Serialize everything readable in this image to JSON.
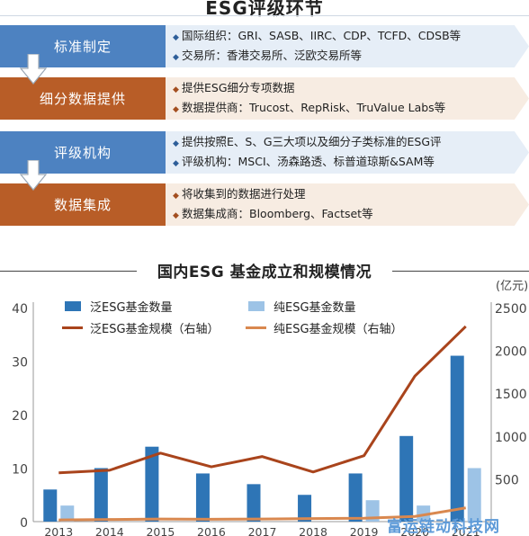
{
  "flow": {
    "title": "ESG评级环节",
    "steps": [
      {
        "label": "标准制定",
        "color": "blue",
        "bullets": [
          "国际组织：GRI、SASB、IIRC、CDP、TCFD、CDSB等",
          "交易所：香港交易所、泛欧交易所等"
        ]
      },
      {
        "label": "细分数据提供",
        "color": "orange",
        "bullets": [
          "提供ESG细分专项数据",
          "数据提供商：Trucost、RepRisk、TruValue Labs等"
        ]
      },
      {
        "label": "评级机构",
        "color": "blue",
        "bullets": [
          "提供按照E、S、G三大项以及细分子类标准的ESG评",
          "评级机构：MSCI、汤森路透、标普道琼斯&SAM等"
        ]
      },
      {
        "label": "数据集成",
        "color": "orange",
        "bullets": [
          "将收集到的数据进行处理",
          "数据集成商：Bloomberg、Factset等"
        ]
      }
    ]
  },
  "chart_data": {
    "type": "bar",
    "title": "国内ESG 基金成立和规模情况",
    "categories": [
      "2013",
      "2014",
      "2015",
      "2016",
      "2017",
      "2018",
      "2019",
      "2020",
      "2021"
    ],
    "series": [
      {
        "name": "泛ESG基金数量",
        "kind": "bar",
        "axis": "left",
        "color": "#2e75b6",
        "values": [
          6,
          10,
          14,
          9,
          7,
          5,
          9,
          16,
          31
        ]
      },
      {
        "name": "纯ESG基金数量",
        "kind": "bar",
        "axis": "left",
        "color": "#9dc3e6",
        "values": [
          3,
          0,
          0,
          0,
          0,
          0,
          4,
          3,
          10
        ]
      },
      {
        "name": "泛ESG基金规模（右轴）",
        "kind": "line",
        "axis": "right",
        "color": "#a9441c",
        "values": [
          570,
          600,
          800,
          640,
          760,
          580,
          770,
          1700,
          2280
        ]
      },
      {
        "name": "纯ESG基金规模（右轴）",
        "kind": "line",
        "axis": "right",
        "color": "#d9884f",
        "values": [
          20,
          25,
          30,
          28,
          30,
          35,
          40,
          60,
          160
        ]
      }
    ],
    "y_left": {
      "min": 0,
      "max": 40,
      "ticks": [
        0,
        10,
        20,
        30,
        40
      ]
    },
    "y_right": {
      "min": 0,
      "max": 2500,
      "ticks": [
        500,
        1000,
        1500,
        2000,
        2500
      ],
      "unit": "(亿元)"
    },
    "grid": true,
    "legend_position": "top"
  },
  "watermark": "富运链动科技网"
}
